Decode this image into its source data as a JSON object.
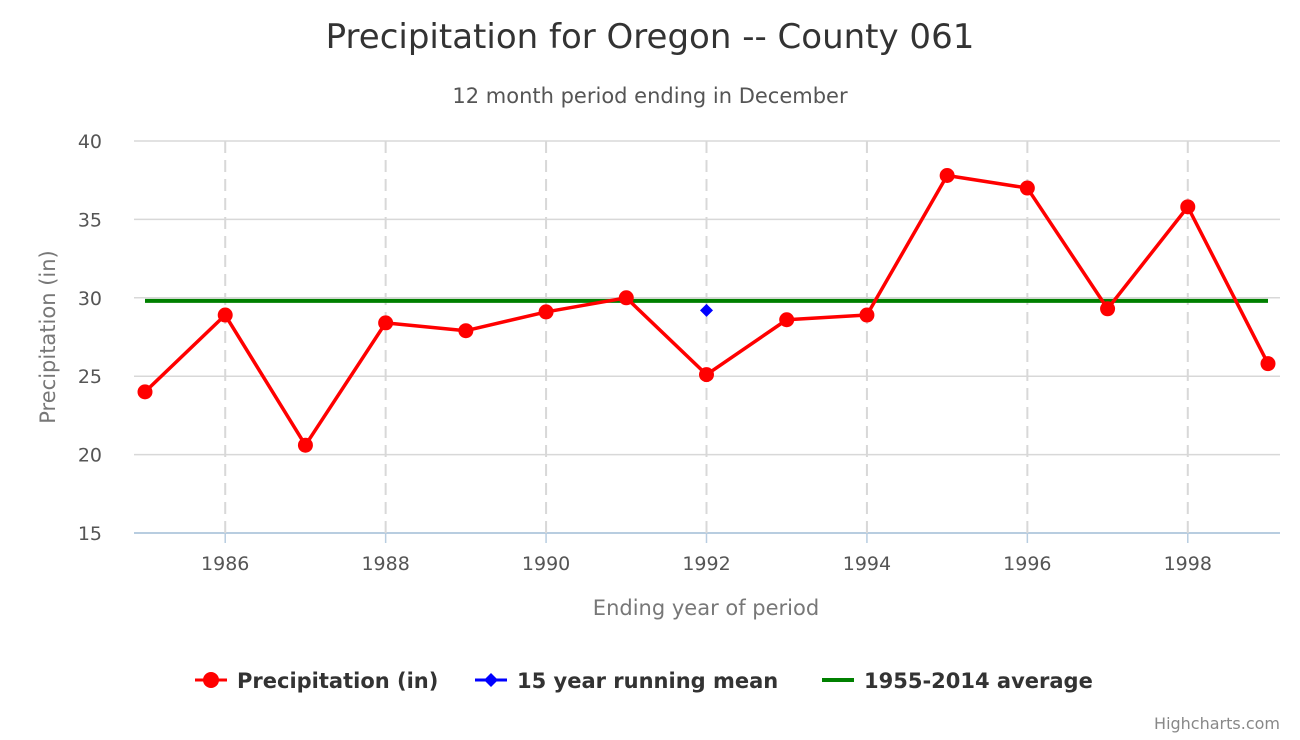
{
  "chart_data": {
    "type": "line",
    "title": "Precipitation for Oregon -- County 061",
    "subtitle": "12 month period ending in December",
    "xlabel": "Ending year of period",
    "ylabel": "Precipitation (in)",
    "xlim": [
      1985,
      1999
    ],
    "ylim": [
      15,
      40
    ],
    "x_ticks": [
      "1986",
      "1988",
      "1990",
      "1992",
      "1994",
      "1996",
      "1998"
    ],
    "y_ticks": [
      "15",
      "20",
      "25",
      "30",
      "35",
      "40"
    ],
    "grid": true,
    "legend_position": "bottom",
    "series": [
      {
        "name": "Precipitation (in)",
        "color": "#ff0000",
        "marker": "circle",
        "x": [
          1985,
          1986,
          1987,
          1988,
          1989,
          1990,
          1991,
          1992,
          1993,
          1994,
          1995,
          1996,
          1997,
          1998,
          1999
        ],
        "values": [
          24.0,
          28.9,
          20.6,
          28.4,
          27.9,
          29.1,
          30.0,
          25.1,
          28.6,
          28.9,
          37.8,
          37.0,
          29.3,
          35.8,
          25.8
        ]
      },
      {
        "name": "15 year running mean",
        "color": "#0000ff",
        "marker": "diamond",
        "x": [
          1992
        ],
        "values": [
          29.2
        ]
      },
      {
        "name": "1955-2014 average",
        "color": "#008000",
        "marker": "none",
        "x": [
          1985,
          1999
        ],
        "values": [
          29.8,
          29.8
        ]
      }
    ]
  },
  "credits": "Highcharts.com"
}
